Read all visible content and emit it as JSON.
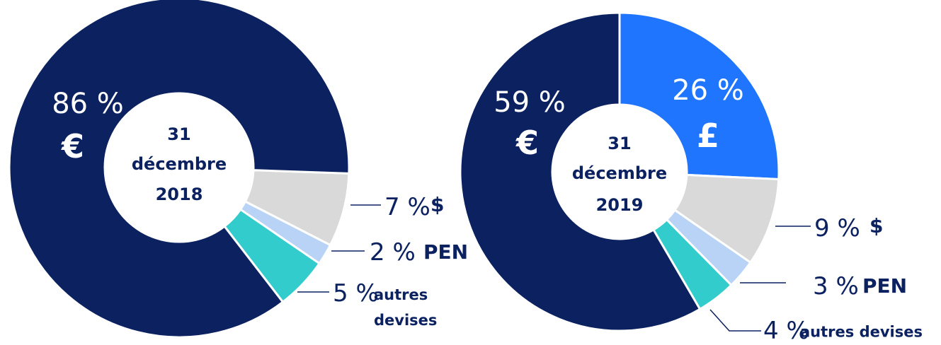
{
  "chart_data": [
    {
      "type": "pie",
      "title_lines": [
        "31",
        "décembre",
        "2018"
      ],
      "categories": [
        "$",
        "PEN",
        "autres devises",
        "€"
      ],
      "values": [
        7,
        2,
        5,
        86
      ],
      "value_labels": [
        "7 %",
        "2 %",
        "5 %",
        "86 %"
      ],
      "colors": [
        "#d9d9d9",
        "#b9d3f7",
        "#33cccc",
        "#0b2160"
      ]
    },
    {
      "type": "pie",
      "title_lines": [
        "31",
        "décembre",
        "2019"
      ],
      "categories": [
        "£",
        "$",
        "PEN",
        "autres devises",
        "€"
      ],
      "values": [
        26,
        9,
        3,
        4,
        59
      ],
      "value_labels": [
        "26 %",
        "9 %",
        "3 %",
        "4 %",
        "59 %"
      ],
      "colors": [
        "#1f75fe",
        "#d9d9d9",
        "#b9d3f7",
        "#33cccc",
        "#0b2160"
      ]
    }
  ]
}
